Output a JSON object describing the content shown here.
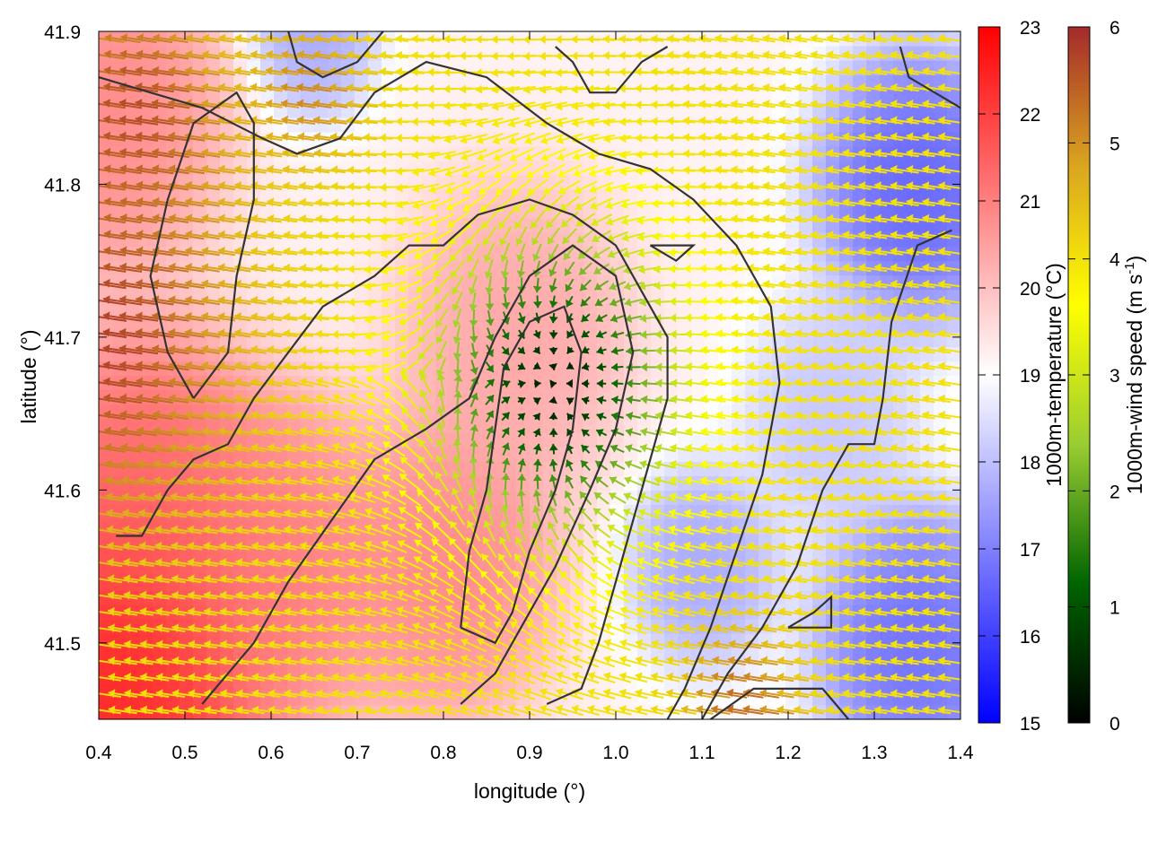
{
  "chart_data": {
    "type": "heatmap",
    "title": "",
    "xlabel": "longitude (°)",
    "ylabel": "latitude (°)",
    "xlim": [
      0.4,
      1.4
    ],
    "ylim": [
      41.45,
      41.9
    ],
    "xticks": [
      0.4,
      0.5,
      0.6,
      0.7,
      0.8,
      0.9,
      1.0,
      1.1,
      1.2,
      1.3,
      1.4
    ],
    "xtick_labels": [
      "0.4",
      "0.5",
      "0.6",
      "0.7",
      "0.8",
      "0.9",
      "1.0",
      "1.1",
      "1.2",
      "1.3",
      "1.4"
    ],
    "yticks": [
      41.5,
      41.6,
      41.7,
      41.8,
      41.9
    ],
    "ytick_labels": [
      "41.5",
      "41.6",
      "41.7",
      "41.8",
      "41.9"
    ],
    "grid": false,
    "temperature_colorbar": {
      "label": "1000m-temperature (°C)",
      "range": [
        15,
        23
      ],
      "ticks": [
        15,
        16,
        17,
        18,
        19,
        20,
        21,
        22,
        23
      ],
      "tick_labels": [
        "15",
        "16",
        "17",
        "18",
        "19",
        "20",
        "21",
        "22",
        "23"
      ],
      "colors": [
        "#0000ff",
        "#ffffff",
        "#ff0000"
      ]
    },
    "wind_colorbar": {
      "label_main": "1000m-wind speed (m s",
      "label_sup": "-1",
      "label_end": ")",
      "range": [
        0,
        6
      ],
      "ticks": [
        0,
        1,
        2,
        3,
        4,
        5,
        6
      ],
      "tick_labels": [
        "0",
        "1",
        "2",
        "3",
        "4",
        "5",
        "6"
      ],
      "colors": [
        "#000000",
        "#006400",
        "#9acd32",
        "#ffff00",
        "#daa520",
        "#a52a2a"
      ]
    },
    "contour_color": "#333333",
    "temperature_centers": [
      {
        "lon": 0.42,
        "lat": 41.48,
        "value": 22.8,
        "spread": 0.12
      },
      {
        "lon": 0.45,
        "lat": 41.6,
        "value": 21.5,
        "spread": 0.1
      },
      {
        "lon": 0.6,
        "lat": 41.55,
        "value": 21.2,
        "spread": 0.1
      },
      {
        "lon": 0.8,
        "lat": 41.55,
        "value": 21.0,
        "spread": 0.09
      },
      {
        "lon": 0.88,
        "lat": 41.7,
        "value": 20.5,
        "spread": 0.09
      },
      {
        "lon": 0.4,
        "lat": 41.85,
        "value": 21.0,
        "spread": 0.1
      },
      {
        "lon": 1.35,
        "lat": 41.8,
        "value": 16.3,
        "spread": 0.08
      },
      {
        "lon": 1.35,
        "lat": 41.5,
        "value": 16.5,
        "spread": 0.08
      },
      {
        "lon": 1.1,
        "lat": 41.55,
        "value": 17.5,
        "spread": 0.06
      },
      {
        "lon": 0.65,
        "lat": 41.9,
        "value": 17.5,
        "spread": 0.05
      },
      {
        "lon": 1.25,
        "lat": 41.65,
        "value": 18.0,
        "spread": 0.07
      }
    ],
    "wind_calm_center": {
      "lon": 0.93,
      "lat": 41.67,
      "value": 0.4
    },
    "wind_strong_regions": [
      {
        "lon": 0.4,
        "lat": 41.7,
        "value": 6.0,
        "spread": 0.16
      },
      {
        "lon": 0.45,
        "lat": 41.85,
        "value": 5.8,
        "spread": 0.1
      },
      {
        "lon": 1.15,
        "lat": 41.46,
        "value": 5.5,
        "spread": 0.06
      },
      {
        "lon": 0.65,
        "lat": 41.86,
        "value": 5.2,
        "spread": 0.06
      }
    ],
    "contours": [
      [
        [
          0.42,
          41.57
        ],
        [
          0.45,
          41.57
        ],
        [
          0.48,
          41.6
        ],
        [
          0.51,
          41.62
        ],
        [
          0.55,
          41.63
        ],
        [
          0.58,
          41.66
        ],
        [
          0.62,
          41.69
        ],
        [
          0.66,
          41.72
        ],
        [
          0.72,
          41.74
        ],
        [
          0.76,
          41.76
        ],
        [
          0.8,
          41.76
        ],
        [
          0.84,
          41.78
        ],
        [
          0.9,
          41.79
        ],
        [
          0.95,
          41.78
        ],
        [
          1.0,
          41.76
        ],
        [
          1.03,
          41.73
        ],
        [
          1.06,
          41.7
        ],
        [
          1.06,
          41.66
        ],
        [
          1.04,
          41.62
        ],
        [
          1.02,
          41.58
        ],
        [
          1.0,
          41.54
        ],
        [
          0.98,
          41.5
        ],
        [
          0.96,
          41.47
        ],
        [
          0.92,
          41.46
        ]
      ],
      [
        [
          0.52,
          41.46
        ],
        [
          0.58,
          41.5
        ],
        [
          0.62,
          41.54
        ],
        [
          0.67,
          41.58
        ],
        [
          0.72,
          41.62
        ],
        [
          0.78,
          41.64
        ],
        [
          0.83,
          41.66
        ],
        [
          0.86,
          41.7
        ],
        [
          0.9,
          41.74
        ],
        [
          0.95,
          41.76
        ],
        [
          1.0,
          41.74
        ],
        [
          1.02,
          41.69
        ],
        [
          1.0,
          41.64
        ],
        [
          0.97,
          41.6
        ],
        [
          0.93,
          41.55
        ],
        [
          0.89,
          41.51
        ],
        [
          0.86,
          41.48
        ],
        [
          0.82,
          41.46
        ]
      ],
      [
        [
          0.82,
          41.51
        ],
        [
          0.83,
          41.56
        ],
        [
          0.85,
          41.6
        ],
        [
          0.86,
          41.64
        ],
        [
          0.87,
          41.68
        ],
        [
          0.9,
          41.71
        ],
        [
          0.94,
          41.72
        ],
        [
          0.96,
          41.69
        ],
        [
          0.95,
          41.64
        ],
        [
          0.93,
          41.6
        ],
        [
          0.9,
          41.56
        ],
        [
          0.88,
          41.52
        ],
        [
          0.86,
          41.5
        ],
        [
          0.82,
          41.51
        ]
      ],
      [
        [
          0.51,
          41.66
        ],
        [
          0.48,
          41.69
        ],
        [
          0.46,
          41.74
        ],
        [
          0.48,
          41.79
        ],
        [
          0.51,
          41.84
        ],
        [
          0.56,
          41.86
        ],
        [
          0.58,
          41.84
        ],
        [
          0.58,
          41.79
        ],
        [
          0.56,
          41.74
        ],
        [
          0.55,
          41.69
        ],
        [
          0.51,
          41.66
        ]
      ],
      [
        [
          0.4,
          41.87
        ],
        [
          0.46,
          41.86
        ],
        [
          0.52,
          41.85
        ],
        [
          0.59,
          41.83
        ],
        [
          0.63,
          41.82
        ],
        [
          0.68,
          41.83
        ],
        [
          0.72,
          41.86
        ],
        [
          0.78,
          41.88
        ],
        [
          0.85,
          41.87
        ],
        [
          0.92,
          41.84
        ],
        [
          0.98,
          41.82
        ],
        [
          1.04,
          41.81
        ],
        [
          1.09,
          41.79
        ],
        [
          1.14,
          41.76
        ],
        [
          1.18,
          41.72
        ],
        [
          1.19,
          41.67
        ],
        [
          1.17,
          41.61
        ],
        [
          1.14,
          41.56
        ],
        [
          1.11,
          41.51
        ],
        [
          1.08,
          41.47
        ],
        [
          1.06,
          41.45
        ]
      ],
      [
        [
          1.39,
          41.77
        ],
        [
          1.35,
          41.76
        ],
        [
          1.32,
          41.71
        ],
        [
          1.31,
          41.66
        ],
        [
          1.3,
          41.63
        ],
        [
          1.27,
          41.63
        ],
        [
          1.24,
          41.6
        ],
        [
          1.21,
          41.55
        ],
        [
          1.17,
          41.51
        ],
        [
          1.13,
          41.48
        ],
        [
          1.1,
          41.45
        ]
      ],
      [
        [
          1.11,
          41.45
        ],
        [
          1.16,
          41.47
        ],
        [
          1.21,
          41.47
        ],
        [
          1.24,
          41.47
        ],
        [
          1.27,
          41.45
        ]
      ],
      [
        [
          1.2,
          41.51
        ],
        [
          1.25,
          41.51
        ],
        [
          1.25,
          41.53
        ],
        [
          1.23,
          41.52
        ],
        [
          1.2,
          41.51
        ]
      ],
      [
        [
          0.93,
          41.89
        ],
        [
          0.95,
          41.88
        ],
        [
          0.97,
          41.86
        ],
        [
          1.0,
          41.86
        ],
        [
          1.03,
          41.88
        ],
        [
          1.06,
          41.89
        ]
      ],
      [
        [
          1.33,
          41.89
        ],
        [
          1.34,
          41.87
        ],
        [
          1.37,
          41.86
        ],
        [
          1.4,
          41.85
        ]
      ],
      [
        [
          0.73,
          41.9
        ],
        [
          0.7,
          41.88
        ],
        [
          0.66,
          41.87
        ],
        [
          0.63,
          41.88
        ],
        [
          0.62,
          41.9
        ]
      ],
      [
        [
          1.04,
          41.76
        ],
        [
          1.07,
          41.75
        ],
        [
          1.09,
          41.76
        ],
        [
          1.06,
          41.76
        ],
        [
          1.04,
          41.76
        ]
      ]
    ]
  }
}
